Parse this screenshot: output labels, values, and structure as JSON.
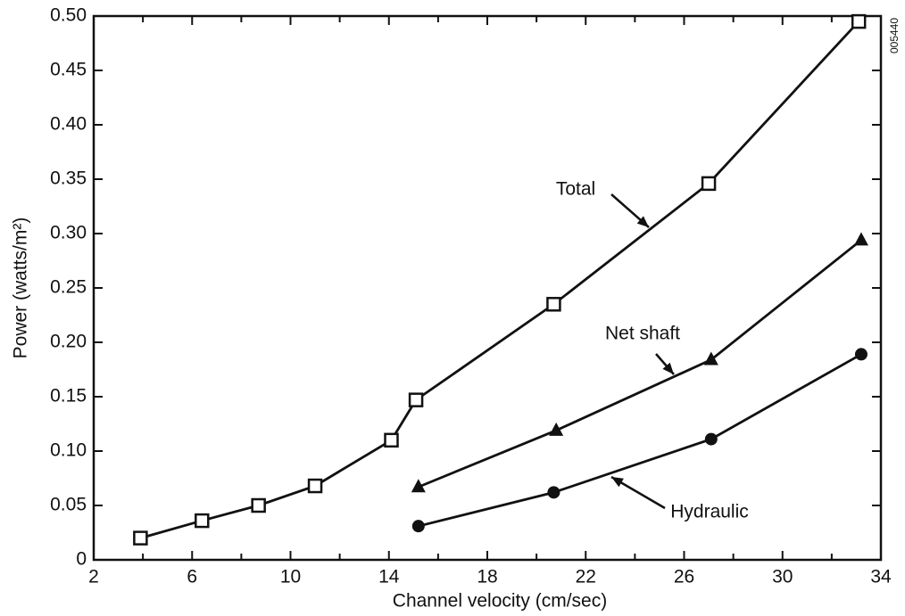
{
  "chart_data": {
    "type": "line",
    "xlabel": "Channel velocity (cm/sec)",
    "ylabel": "Power (watts/m²)",
    "side_label": "005440",
    "xlim": [
      2,
      34
    ],
    "xticks": [
      2,
      6,
      10,
      14,
      18,
      22,
      26,
      30,
      34
    ],
    "xminor_ticks": [
      4,
      8,
      12,
      16,
      20,
      24,
      28,
      32
    ],
    "ylim": [
      0,
      0.5
    ],
    "yticks": [
      0,
      {
        "value": 0.05,
        "label": "0.05"
      },
      {
        "value": 0.1,
        "label": "0.10"
      },
      {
        "value": 0.15,
        "label": "0.15"
      },
      {
        "value": 0.2,
        "label": "0.20"
      },
      {
        "value": 0.25,
        "label": "0.25"
      },
      {
        "value": 0.3,
        "label": "0.30"
      },
      {
        "value": 0.35,
        "label": "0.35"
      },
      {
        "value": 0.4,
        "label": "0.40"
      },
      {
        "value": 0.45,
        "label": "0.45"
      },
      {
        "value": 0.5,
        "label": "0.50"
      }
    ],
    "grid": false,
    "series": [
      {
        "name": "Total",
        "color": "#111111",
        "marker": "open-square",
        "x": [
          3.9,
          6.4,
          8.7,
          11.0,
          14.1,
          15.1,
          20.7,
          27.0,
          33.1
        ],
        "values": [
          0.02,
          0.036,
          0.05,
          0.068,
          0.11,
          0.147,
          0.235,
          0.346,
          0.495
        ]
      },
      {
        "name": "Net shaft",
        "color": "#111111",
        "marker": "triangle",
        "x": [
          15.2,
          20.8,
          27.1,
          33.2
        ],
        "values": [
          0.067,
          0.119,
          0.184,
          0.294
        ]
      },
      {
        "name": "Hydraulic",
        "color": "#111111",
        "marker": "circle",
        "x": [
          15.2,
          20.7,
          27.1,
          33.2
        ],
        "values": [
          0.031,
          0.062,
          0.111,
          0.189
        ]
      }
    ]
  }
}
